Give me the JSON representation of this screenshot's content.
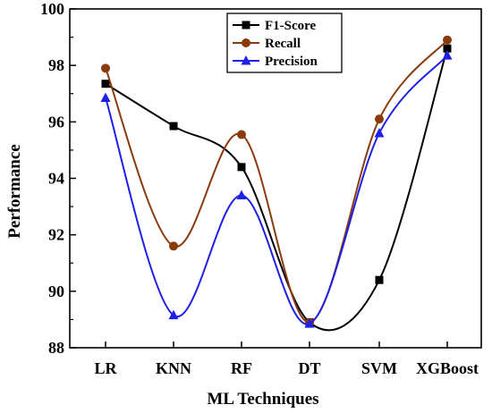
{
  "chart_data": {
    "type": "line",
    "categories": [
      "LR",
      "KNN",
      "RF",
      "DT",
      "SVM",
      "XGBoost"
    ],
    "series": [
      {
        "name": "F1-Score",
        "values": [
          97.35,
          95.85,
          94.4,
          88.9,
          90.4,
          98.6
        ],
        "color": "#000000",
        "marker": "square"
      },
      {
        "name": "Recall",
        "values": [
          97.9,
          91.6,
          95.55,
          88.9,
          96.1,
          98.9
        ],
        "color": "#8b3a0e",
        "marker": "circle"
      },
      {
        "name": "Precision",
        "values": [
          96.85,
          89.15,
          93.4,
          88.85,
          95.6,
          98.35
        ],
        "color": "#1f1fe6",
        "marker": "triangle"
      }
    ],
    "xlabel": "ML Techniques",
    "ylabel": "Performance",
    "ylim": [
      88,
      100
    ],
    "yticks": [
      88,
      90,
      92,
      94,
      96,
      98,
      100
    ],
    "legend_position": "top-center",
    "grid": false
  }
}
